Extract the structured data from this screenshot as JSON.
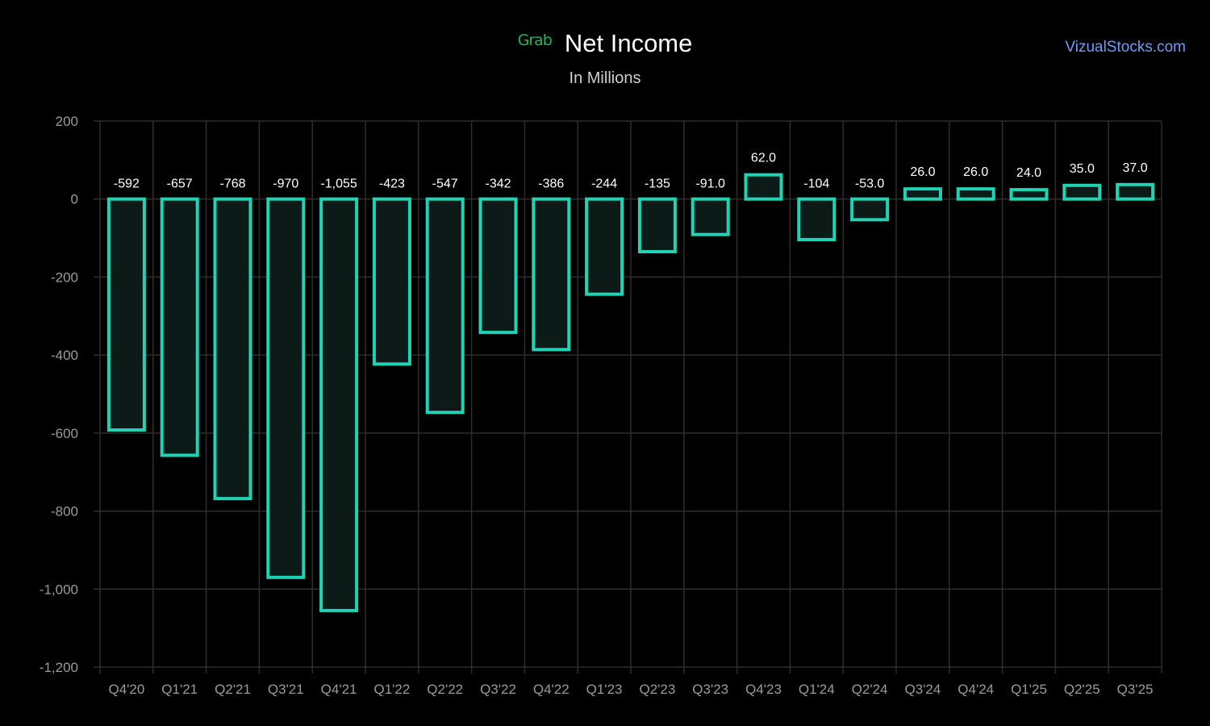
{
  "header": {
    "logo_text": "Grab",
    "title": "Net Income",
    "subtitle": "In Millions",
    "source_link": "VizualStocks.com"
  },
  "colors": {
    "background": "#000000",
    "bar_stroke": "#1ed4b4",
    "bar_fill": "#0c1a18",
    "grid": "#2e2e2e",
    "logo": "#1db954",
    "link": "#6f9cf5"
  },
  "chart_data": {
    "type": "bar",
    "title": "Net Income",
    "subtitle": "In Millions",
    "categories": [
      "Q4'20",
      "Q1'21",
      "Q2'21",
      "Q3'21",
      "Q4'21",
      "Q1'22",
      "Q2'22",
      "Q3'22",
      "Q4'22",
      "Q1'23",
      "Q2'23",
      "Q3'23",
      "Q4'23",
      "Q1'24",
      "Q2'24",
      "Q3'24",
      "Q4'24",
      "Q1'25",
      "Q2'25",
      "Q3'25"
    ],
    "values": [
      -592,
      -657,
      -768,
      -970,
      -1055,
      -423,
      -547,
      -342,
      -386,
      -244,
      -135,
      -91,
      62,
      -104,
      -53,
      26,
      26,
      24,
      35,
      37
    ],
    "data_labels": [
      "-592",
      "-657",
      "-768",
      "-970",
      "-1,055",
      "-423",
      "-547",
      "-342",
      "-386",
      "-244",
      "-135",
      "-91.0",
      "62.0",
      "-104",
      "-53.0",
      "26.0",
      "26.0",
      "24.0",
      "35.0",
      "37.0"
    ],
    "y_ticks": [
      200,
      0,
      -200,
      -400,
      -600,
      -800,
      -1000,
      -1200
    ],
    "y_tick_labels": [
      "200",
      "0",
      "-200",
      "-400",
      "-600",
      "-800",
      "-1,000",
      "-1,200"
    ],
    "ylim": [
      -1200,
      200
    ],
    "grid": true
  }
}
